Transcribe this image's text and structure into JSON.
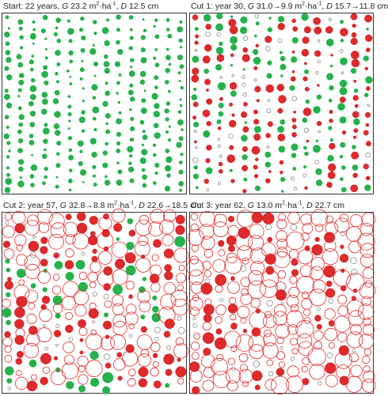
{
  "panels": [
    {
      "id": "start",
      "title_parts": [
        "Start: 22 years, ",
        "G",
        " 23.2 m",
        "2",
        "·ha",
        "-1",
        ", ",
        "D",
        " 12.5 cm"
      ],
      "colors": {
        "remaining": "#27b14c",
        "removed": "#e0292b",
        "past": "#e0292b",
        "dead": "#8a8a8a"
      },
      "seed": 11,
      "prev_removed": 0,
      "removed_now": 0,
      "dead": 0,
      "size_scale": 0.85
    },
    {
      "id": "cut1",
      "title_parts": [
        "Cut 1: year 30, ",
        "G",
        " 31.0→9.9 m",
        "2",
        "·ha",
        "-1",
        ", ",
        "D",
        " 15.7→11.8 cm"
      ],
      "colors": {
        "remaining": "#27b14c",
        "removed": "#e0292b",
        "past": "#e0292b",
        "dead": "#8a8a8a"
      },
      "seed": 23,
      "prev_removed": 0,
      "removed_now": 0.55,
      "dead": 0.12,
      "size_scale": 1.0
    },
    {
      "id": "cut2",
      "title_parts": [
        "Cut 2: year 57, ",
        "G",
        " 32.8→8.8 m",
        "2",
        "·ha",
        "-1",
        ", ",
        "D",
        " 22.6→18.5 cm"
      ],
      "colors": {
        "remaining": "#27b14c",
        "removed": "#e0292b",
        "past": "#e0292b",
        "dead": "#8a8a8a"
      },
      "seed": 37,
      "prev_removed": 0.5,
      "removed_now": 0.28,
      "dead": 0.08,
      "size_scale": 1.35
    },
    {
      "id": "cut3",
      "title_parts": [
        "Cut 3: year 62, ",
        "G",
        " 13.0 m",
        "2",
        "·ha",
        "-1",
        ", ",
        "D",
        " 22.7 cm"
      ],
      "colors": {
        "remaining": "#27b14c",
        "removed": "#e0292b",
        "past": "#e0292b",
        "dead": "#8a8a8a"
      },
      "seed": 53,
      "prev_removed": 0.7,
      "removed_now": 0.22,
      "dead": 0.08,
      "size_scale": 1.45
    }
  ]
}
